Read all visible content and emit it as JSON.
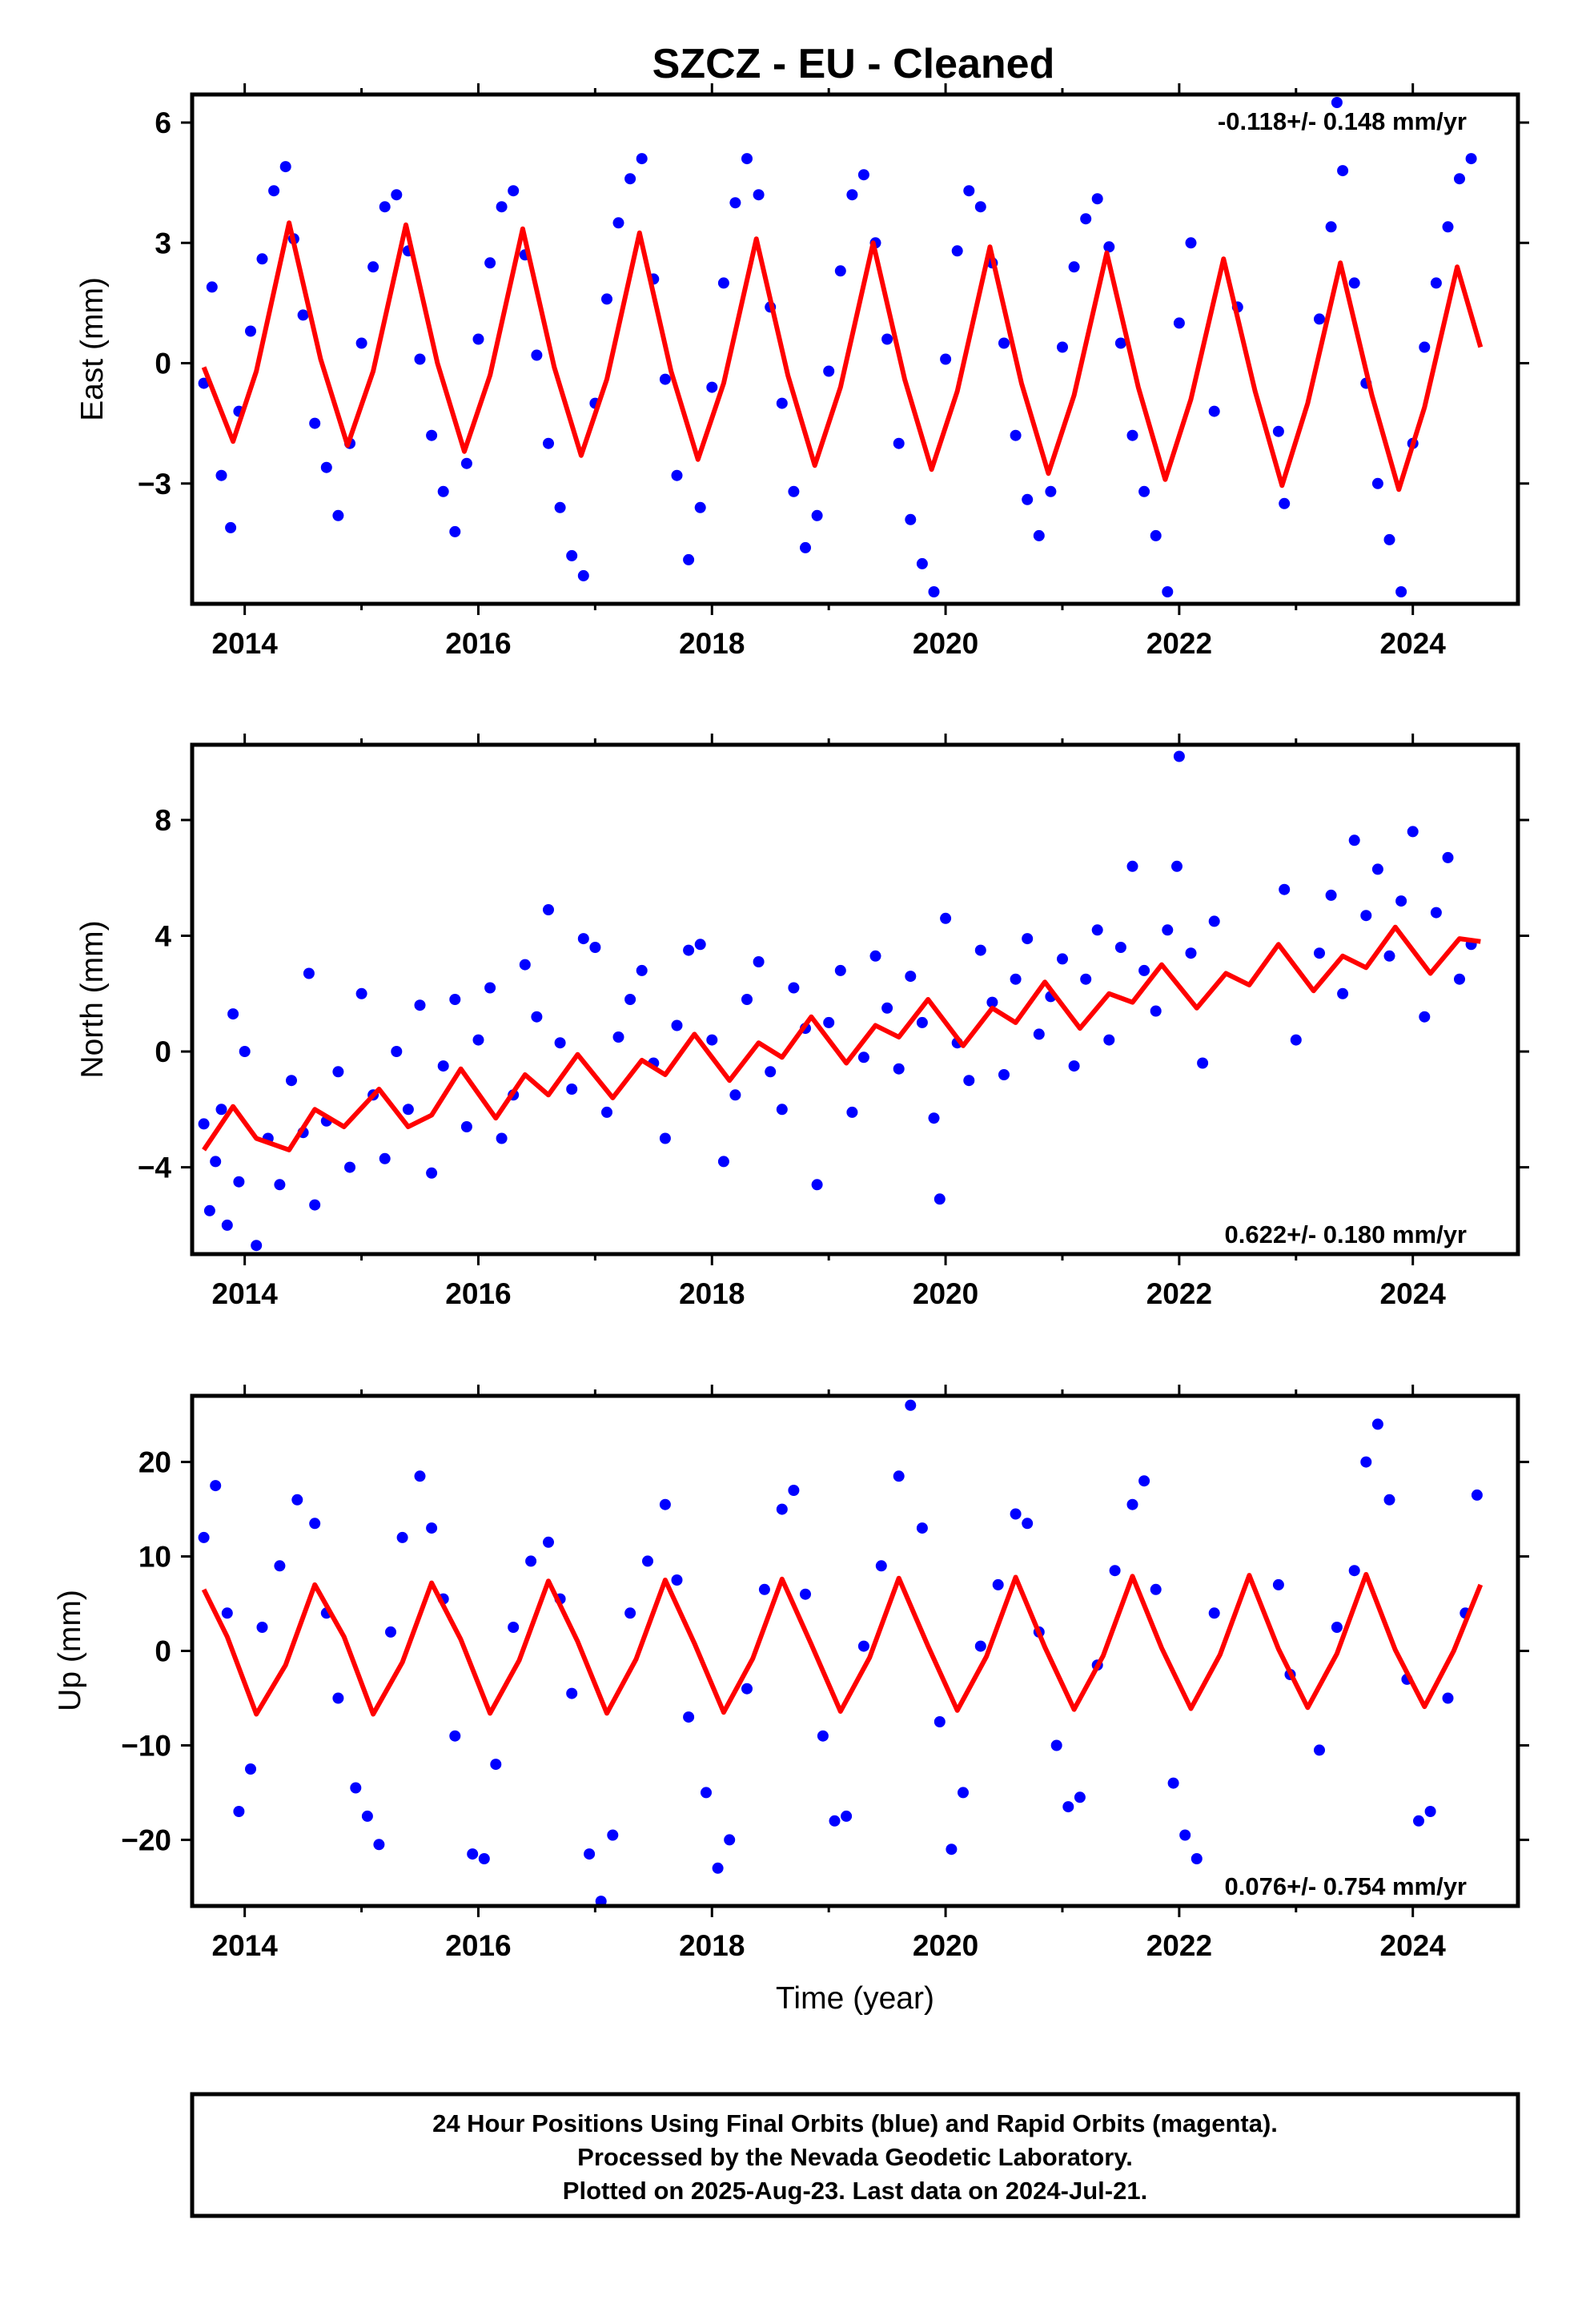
{
  "title": "SZCZ  - EU - Cleaned",
  "colors": {
    "data": "#0000ff",
    "model": "#ff0000",
    "frame": "#000000"
  },
  "footer": {
    "line1": "24 Hour Positions Using Final Orbits (blue) and Rapid Orbits (magenta).",
    "line2": "Processed by the Nevada Geodetic Laboratory.",
    "line3": "Plotted on 2025-Aug-23. Last data on 2024-Jul-21."
  },
  "xlabel": "Time (year)",
  "chart_data": [
    {
      "type": "scatter",
      "ylabel": "East (mm)",
      "rate": "-0.118+/- 0.148 mm/yr",
      "xlim": [
        2013.55,
        2024.9
      ],
      "ylim": [
        -6.0,
        6.7
      ],
      "xticks": [
        2014,
        2016,
        2018,
        2020,
        2022,
        2024
      ],
      "yticks": [
        6,
        3,
        0,
        -3
      ],
      "series": [
        {
          "role": "observations",
          "color": "#0000ff",
          "x": [
            2013.65,
            2013.72,
            2013.8,
            2013.88,
            2013.95,
            2014.05,
            2014.15,
            2014.25,
            2014.35,
            2014.42,
            2014.5,
            2014.6,
            2014.7,
            2014.8,
            2014.9,
            2015.0,
            2015.1,
            2015.2,
            2015.3,
            2015.4,
            2015.5,
            2015.6,
            2015.7,
            2015.8,
            2015.9,
            2016.0,
            2016.1,
            2016.2,
            2016.3,
            2016.4,
            2016.5,
            2016.6,
            2016.7,
            2016.8,
            2016.9,
            2017.0,
            2017.1,
            2017.2,
            2017.3,
            2017.4,
            2017.5,
            2017.6,
            2017.7,
            2017.8,
            2017.9,
            2018.0,
            2018.1,
            2018.2,
            2018.3,
            2018.4,
            2018.5,
            2018.6,
            2018.7,
            2018.8,
            2018.9,
            2019.0,
            2019.1,
            2019.2,
            2019.3,
            2019.4,
            2019.5,
            2019.6,
            2019.7,
            2019.8,
            2019.9,
            2020.0,
            2020.1,
            2020.2,
            2020.3,
            2020.4,
            2020.5,
            2020.6,
            2020.7,
            2020.8,
            2020.9,
            2021.0,
            2021.1,
            2021.2,
            2021.3,
            2021.4,
            2021.5,
            2021.6,
            2021.7,
            2021.8,
            2021.9,
            2022.0,
            2022.1,
            2022.3,
            2022.5,
            2022.85,
            2022.9,
            2023.2,
            2023.3,
            2023.35,
            2023.4,
            2023.5,
            2023.6,
            2023.7,
            2023.8,
            2023.9,
            2024.0,
            2024.1,
            2024.2,
            2024.3,
            2024.4,
            2024.5
          ],
          "y": [
            -0.5,
            1.9,
            -2.8,
            -4.1,
            -1.2,
            0.8,
            2.6,
            4.3,
            4.9,
            3.1,
            1.2,
            -1.5,
            -2.6,
            -3.8,
            -2.0,
            0.5,
            2.4,
            3.9,
            4.2,
            2.8,
            0.1,
            -1.8,
            -3.2,
            -4.2,
            -2.5,
            0.6,
            2.5,
            3.9,
            4.3,
            2.7,
            0.2,
            -2.0,
            -3.6,
            -4.8,
            -5.3,
            -1.0,
            1.6,
            3.5,
            4.6,
            5.1,
            2.1,
            -0.4,
            -2.8,
            -4.9,
            -3.6,
            -0.6,
            2.0,
            4.0,
            5.1,
            4.2,
            1.4,
            -1.0,
            -3.2,
            -4.6,
            -3.8,
            -0.2,
            2.3,
            4.2,
            4.7,
            3.0,
            0.6,
            -2.0,
            -3.9,
            -5.0,
            -5.7,
            0.1,
            2.8,
            4.3,
            3.9,
            2.5,
            0.5,
            -1.8,
            -3.4,
            -4.3,
            -3.2,
            0.4,
            2.4,
            3.6,
            4.1,
            2.9,
            0.5,
            -1.8,
            -3.2,
            -4.3,
            -5.7,
            1.0,
            3.0,
            -1.2,
            1.4,
            -1.7,
            -3.5,
            1.1,
            3.4,
            6.5,
            4.8,
            2.0,
            -0.5,
            -3.0,
            -4.4,
            -5.7,
            -2.0,
            0.4,
            2.0,
            3.4,
            4.6,
            5.1
          ]
        },
        {
          "role": "model",
          "color": "#ff0000",
          "trend_mm_per_yr": -0.118,
          "x": [
            2013.65,
            2013.9,
            2014.1,
            2014.38,
            2014.65,
            2014.88,
            2015.1,
            2015.38,
            2015.65,
            2015.88,
            2016.1,
            2016.38,
            2016.65,
            2016.88,
            2017.1,
            2017.38,
            2017.65,
            2017.88,
            2018.1,
            2018.38,
            2018.65,
            2018.88,
            2019.1,
            2019.38,
            2019.65,
            2019.88,
            2020.1,
            2020.38,
            2020.65,
            2020.88,
            2021.1,
            2021.38,
            2021.65,
            2021.88,
            2022.1,
            2022.38,
            2022.65,
            2022.88,
            2023.1,
            2023.38,
            2023.65,
            2023.88,
            2024.1,
            2024.38,
            2024.58
          ],
          "y": [
            -0.1,
            -1.95,
            -0.2,
            3.5,
            0.1,
            -2.05,
            -0.2,
            3.45,
            0.0,
            -2.2,
            -0.3,
            3.35,
            -0.1,
            -2.3,
            -0.4,
            3.25,
            -0.2,
            -2.4,
            -0.5,
            3.1,
            -0.3,
            -2.55,
            -0.6,
            3.0,
            -0.4,
            -2.65,
            -0.7,
            2.9,
            -0.5,
            -2.75,
            -0.8,
            2.75,
            -0.6,
            -2.9,
            -0.9,
            2.6,
            -0.7,
            -3.05,
            -1.0,
            2.5,
            -0.8,
            -3.15,
            -1.1,
            2.4,
            0.4
          ]
        }
      ]
    },
    {
      "type": "scatter",
      "ylabel": "North (mm)",
      "rate": "0.622+/- 0.180 mm/yr",
      "xlim": [
        2013.55,
        2024.9
      ],
      "ylim": [
        -7.0,
        10.6
      ],
      "xticks": [
        2014,
        2016,
        2018,
        2020,
        2022,
        2024
      ],
      "yticks": [
        8,
        4,
        0,
        -4
      ],
      "series": [
        {
          "role": "observations",
          "color": "#0000ff",
          "x": [
            2013.65,
            2013.7,
            2013.75,
            2013.8,
            2013.85,
            2013.9,
            2013.95,
            2014.0,
            2014.1,
            2014.2,
            2014.3,
            2014.4,
            2014.5,
            2014.55,
            2014.6,
            2014.7,
            2014.8,
            2014.9,
            2015.0,
            2015.1,
            2015.2,
            2015.3,
            2015.4,
            2015.5,
            2015.6,
            2015.7,
            2015.8,
            2015.9,
            2016.0,
            2016.1,
            2016.2,
            2016.3,
            2016.4,
            2016.5,
            2016.6,
            2016.7,
            2016.8,
            2016.9,
            2017.0,
            2017.1,
            2017.2,
            2017.3,
            2017.4,
            2017.5,
            2017.6,
            2017.7,
            2017.8,
            2017.9,
            2018.0,
            2018.1,
            2018.2,
            2018.3,
            2018.4,
            2018.5,
            2018.6,
            2018.7,
            2018.8,
            2018.9,
            2019.0,
            2019.1,
            2019.2,
            2019.3,
            2019.4,
            2019.5,
            2019.6,
            2019.7,
            2019.8,
            2019.9,
            2019.95,
            2020.0,
            2020.1,
            2020.2,
            2020.3,
            2020.4,
            2020.5,
            2020.6,
            2020.7,
            2020.8,
            2020.9,
            2021.0,
            2021.1,
            2021.2,
            2021.3,
            2021.4,
            2021.5,
            2021.6,
            2021.7,
            2021.8,
            2021.9,
            2021.98,
            2022.0,
            2022.1,
            2022.2,
            2022.3,
            2022.9,
            2023.0,
            2023.2,
            2023.3,
            2023.4,
            2023.5,
            2023.6,
            2023.7,
            2023.8,
            2023.9,
            2024.0,
            2024.1,
            2024.2,
            2024.3,
            2024.4,
            2024.5
          ],
          "y": [
            -2.5,
            -5.5,
            -3.8,
            -2.0,
            -6.0,
            1.3,
            -4.5,
            0.0,
            -6.7,
            -3.0,
            -4.6,
            -1.0,
            -2.8,
            2.7,
            -5.3,
            -2.4,
            -0.7,
            -4.0,
            2.0,
            -1.5,
            -3.7,
            0.0,
            -2.0,
            1.6,
            -4.2,
            -0.5,
            1.8,
            -2.6,
            0.4,
            2.2,
            -3.0,
            -1.5,
            3.0,
            1.2,
            4.9,
            0.3,
            -1.3,
            3.9,
            3.6,
            -2.1,
            0.5,
            1.8,
            2.8,
            -0.4,
            -3.0,
            0.9,
            3.5,
            3.7,
            0.4,
            -3.8,
            -1.5,
            1.8,
            3.1,
            -0.7,
            -2.0,
            2.2,
            0.8,
            -4.6,
            1.0,
            2.8,
            -2.1,
            -0.2,
            3.3,
            1.5,
            -0.6,
            2.6,
            1.0,
            -2.3,
            -5.1,
            4.6,
            0.3,
            -1.0,
            3.5,
            1.7,
            -0.8,
            2.5,
            3.9,
            0.6,
            1.9,
            3.2,
            -0.5,
            2.5,
            4.2,
            0.4,
            3.6,
            6.4,
            2.8,
            1.4,
            4.2,
            6.4,
            10.2,
            3.4,
            -0.4,
            4.5,
            5.6,
            0.4,
            3.4,
            5.4,
            2.0,
            7.3,
            4.7,
            6.3,
            3.3,
            5.2,
            7.6,
            1.2,
            4.8,
            6.7,
            2.5,
            3.7
          ]
        },
        {
          "role": "model",
          "color": "#ff0000",
          "trend_mm_per_yr": 0.622,
          "x": [
            2013.65,
            2013.9,
            2014.1,
            2014.38,
            2014.6,
            2014.85,
            2015.15,
            2015.4,
            2015.6,
            2015.85,
            2016.15,
            2016.4,
            2016.6,
            2016.85,
            2017.15,
            2017.4,
            2017.6,
            2017.85,
            2018.15,
            2018.4,
            2018.6,
            2018.85,
            2019.15,
            2019.4,
            2019.6,
            2019.85,
            2020.15,
            2020.4,
            2020.6,
            2020.85,
            2021.15,
            2021.4,
            2021.6,
            2021.85,
            2022.15,
            2022.4,
            2022.6,
            2022.85,
            2023.15,
            2023.4,
            2023.6,
            2023.85,
            2024.15,
            2024.4,
            2024.58
          ],
          "y": [
            -3.4,
            -1.9,
            -3.0,
            -3.4,
            -2.0,
            -2.6,
            -1.3,
            -2.6,
            -2.2,
            -0.6,
            -2.3,
            -0.8,
            -1.5,
            -0.1,
            -1.6,
            -0.3,
            -0.8,
            0.6,
            -1.0,
            0.3,
            -0.2,
            1.2,
            -0.4,
            0.9,
            0.5,
            1.8,
            0.2,
            1.5,
            1.0,
            2.4,
            0.8,
            2.0,
            1.7,
            3.0,
            1.5,
            2.7,
            2.3,
            3.7,
            2.1,
            3.3,
            2.9,
            4.3,
            2.7,
            3.9,
            3.8
          ]
        }
      ]
    },
    {
      "type": "scatter",
      "ylabel": "Up (mm)",
      "rate": "0.076+/- 0.754 mm/yr",
      "xlim": [
        2013.55,
        2024.9
      ],
      "ylim": [
        -27.0,
        27.0
      ],
      "xticks": [
        2014,
        2016,
        2018,
        2020,
        2022,
        2024
      ],
      "yticks": [
        20,
        10,
        0,
        -10,
        -20
      ],
      "series": [
        {
          "role": "observations",
          "color": "#0000ff",
          "x": [
            2013.65,
            2013.75,
            2013.85,
            2013.95,
            2014.05,
            2014.15,
            2014.3,
            2014.45,
            2014.6,
            2014.7,
            2014.8,
            2014.95,
            2015.05,
            2015.15,
            2015.25,
            2015.35,
            2015.5,
            2015.6,
            2015.7,
            2015.8,
            2015.95,
            2016.05,
            2016.15,
            2016.3,
            2016.45,
            2016.6,
            2016.7,
            2016.8,
            2016.95,
            2017.05,
            2017.15,
            2017.3,
            2017.45,
            2017.6,
            2017.7,
            2017.8,
            2017.95,
            2018.05,
            2018.15,
            2018.3,
            2018.45,
            2018.6,
            2018.7,
            2018.8,
            2018.95,
            2019.05,
            2019.15,
            2019.3,
            2019.45,
            2019.6,
            2019.7,
            2019.8,
            2019.95,
            2020.05,
            2020.15,
            2020.3,
            2020.45,
            2020.6,
            2020.7,
            2020.8,
            2020.95,
            2021.05,
            2021.15,
            2021.3,
            2021.45,
            2021.6,
            2021.7,
            2021.8,
            2021.95,
            2022.05,
            2022.15,
            2022.3,
            2022.85,
            2022.95,
            2023.2,
            2023.35,
            2023.5,
            2023.6,
            2023.7,
            2023.8,
            2023.95,
            2024.05,
            2024.15,
            2024.3,
            2024.45,
            2024.55
          ],
          "y": [
            12.0,
            17.5,
            4.0,
            -17.0,
            -12.5,
            2.5,
            9.0,
            16.0,
            13.5,
            4.0,
            -5.0,
            -14.5,
            -17.5,
            -20.5,
            2.0,
            12.0,
            18.5,
            13.0,
            5.5,
            -9.0,
            -21.5,
            -22.0,
            -12.0,
            2.5,
            9.5,
            11.5,
            5.5,
            -4.5,
            -21.5,
            -26.5,
            -19.5,
            4.0,
            9.5,
            15.5,
            7.5,
            -7.0,
            -15.0,
            -23.0,
            -20.0,
            -4.0,
            6.5,
            15.0,
            17.0,
            6.0,
            -9.0,
            -18.0,
            -17.5,
            0.5,
            9.0,
            18.5,
            26.0,
            13.0,
            -7.5,
            -21.0,
            -15.0,
            0.5,
            7.0,
            14.5,
            13.5,
            2.0,
            -10.0,
            -16.5,
            -15.5,
            -1.5,
            8.5,
            15.5,
            18.0,
            6.5,
            -14.0,
            -19.5,
            -22.0,
            4.0,
            7.0,
            -2.5,
            -10.5,
            2.5,
            8.5,
            20.0,
            24.0,
            16.0,
            -3.0,
            -18.0,
            -17.0,
            -5.0,
            4.0,
            16.5
          ]
        },
        {
          "role": "model",
          "color": "#ff0000",
          "trend_mm_per_yr": 0.076,
          "x": [
            2013.65,
            2013.85,
            2014.1,
            2014.35,
            2014.6,
            2014.85,
            2015.1,
            2015.35,
            2015.6,
            2015.85,
            2016.1,
            2016.35,
            2016.6,
            2016.85,
            2017.1,
            2017.35,
            2017.6,
            2017.85,
            2018.1,
            2018.35,
            2018.6,
            2018.85,
            2019.1,
            2019.35,
            2019.6,
            2019.85,
            2020.1,
            2020.35,
            2020.6,
            2020.85,
            2021.1,
            2021.35,
            2021.6,
            2021.85,
            2022.1,
            2022.35,
            2022.6,
            2022.85,
            2023.1,
            2023.35,
            2023.6,
            2023.85,
            2024.1,
            2024.35,
            2024.58
          ],
          "y": [
            6.5,
            1.5,
            -6.7,
            -1.5,
            7.0,
            1.5,
            -6.7,
            -1.2,
            7.2,
            1.2,
            -6.6,
            -1.0,
            7.4,
            1.0,
            -6.6,
            -0.9,
            7.5,
            0.8,
            -6.5,
            -0.8,
            7.6,
            0.7,
            -6.4,
            -0.7,
            7.7,
            0.5,
            -6.3,
            -0.6,
            7.8,
            0.4,
            -6.2,
            -0.5,
            7.9,
            0.3,
            -6.1,
            -0.4,
            8.0,
            0.2,
            -6.0,
            -0.3,
            8.1,
            0.1,
            -5.9,
            0.0,
            7.0
          ]
        }
      ]
    }
  ]
}
